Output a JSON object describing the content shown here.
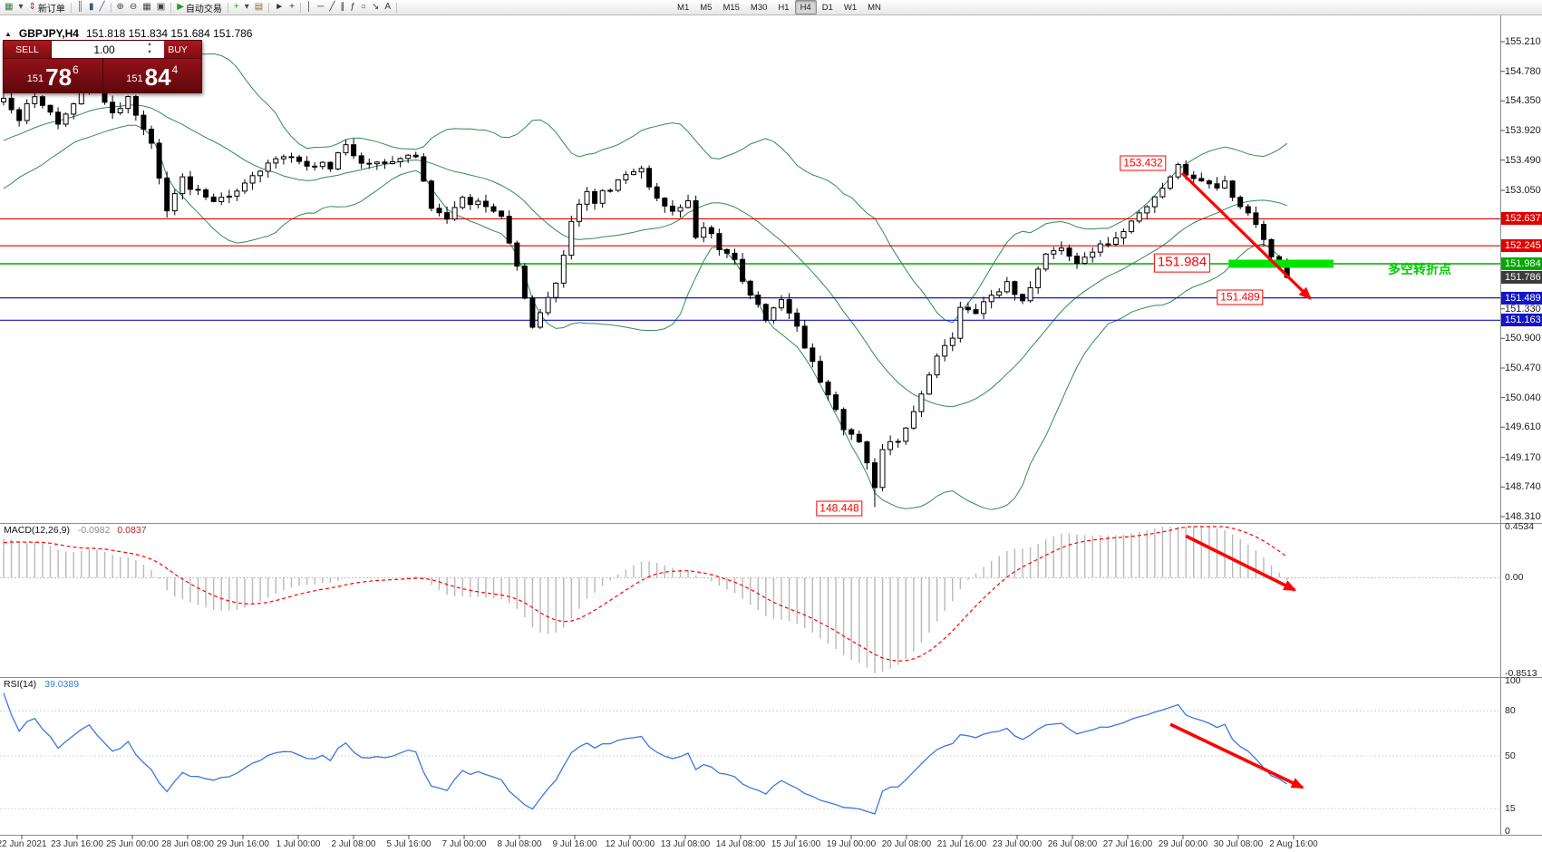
{
  "toolbar": {
    "buttons": [
      {
        "name": "new-chart",
        "glyph": "▦",
        "color": "#3a7d44"
      },
      {
        "name": "profiles",
        "glyph": "▾",
        "color": "#444"
      },
      {
        "name": "new-order",
        "glyph": "⇕",
        "color": "#c02020",
        "label": "新订单"
      },
      {
        "sep": true
      },
      {
        "name": "chart-bars",
        "glyph": "║",
        "color": "#445577"
      },
      {
        "name": "chart-candles",
        "glyph": "▮",
        "color": "#445577"
      },
      {
        "name": "chart-line",
        "glyph": "╱",
        "color": "#445577"
      },
      {
        "sep": true
      },
      {
        "name": "zoom-in",
        "glyph": "⊕",
        "color": "#444"
      },
      {
        "name": "zoom-out",
        "glyph": "⊖",
        "color": "#444"
      },
      {
        "name": "tile-windows",
        "glyph": "▦",
        "color": "#444"
      },
      {
        "name": "cascade-windows",
        "glyph": "▣",
        "color": "#444"
      },
      {
        "sep": true
      },
      {
        "name": "autotrading",
        "glyph": "▶",
        "color": "#21a121",
        "label": "自动交易"
      },
      {
        "sep": true
      },
      {
        "name": "indicators",
        "glyph": "+",
        "color": "#21a121"
      },
      {
        "name": "periods",
        "glyph": "▾",
        "color": "#444"
      },
      {
        "name": "templates",
        "glyph": "▤",
        "color": "#8a6d3b"
      },
      {
        "sep": true
      },
      {
        "name": "cursor",
        "glyph": "►",
        "color": "#333"
      },
      {
        "name": "crosshair",
        "glyph": "+",
        "color": "#333"
      },
      {
        "sep": true
      },
      {
        "name": "vertical-line",
        "glyph": "│",
        "color": "#333"
      },
      {
        "name": "horizontal-line",
        "glyph": "─",
        "color": "#333"
      },
      {
        "name": "trendline",
        "glyph": "╱",
        "color": "#333"
      },
      {
        "name": "channel",
        "glyph": "∥",
        "color": "#333"
      },
      {
        "name": "fibonacci",
        "glyph": "ƒ",
        "color": "#333"
      },
      {
        "name": "shapes",
        "glyph": "○",
        "color": "#333"
      },
      {
        "name": "arrows",
        "glyph": "↘",
        "color": "#333"
      },
      {
        "name": "text",
        "glyph": "A",
        "color": "#333"
      },
      {
        "sep": true
      }
    ],
    "timeframes": [
      "M1",
      "M5",
      "M15",
      "M30",
      "H1",
      "H4",
      "D1",
      "W1",
      "MN"
    ],
    "active_timeframe": "H4"
  },
  "symbol_info": {
    "symbol": "GBPJPY,H4",
    "ohlc": "151.818 151.834 151.684 151.786"
  },
  "trade_panel": {
    "sell_label": "SELL",
    "buy_label": "BUY",
    "volume": "1.00",
    "sell_price": {
      "prefix": "151",
      "big": "78",
      "sup": "6"
    },
    "buy_price": {
      "prefix": "151",
      "big": "84",
      "sup": "4"
    }
  },
  "chart_data": {
    "type": "candlestick",
    "symbol": "GBPJPY",
    "timeframe": "H4",
    "price_axis": {
      "min": 148.31,
      "max": 155.21,
      "ticks": [
        "155.210",
        "154.780",
        "154.350",
        "153.920",
        "153.490",
        "153.050",
        "151.330",
        "150.900",
        "150.470",
        "150.040",
        "149.610",
        "149.170",
        "148.740",
        "148.310"
      ]
    },
    "levels": [
      {
        "price": 152.637,
        "label": "152.637",
        "color": "#e00000",
        "lw": 1.1
      },
      {
        "price": 152.245,
        "label": "152.245",
        "color": "#e00000",
        "lw": 1.1
      },
      {
        "price": 151.984,
        "label": "151.984",
        "color": "#00a800",
        "lw": 1.6
      },
      {
        "price": 151.489,
        "label": "151.489",
        "color": "#1414c8",
        "lw": 1.2
      },
      {
        "price": 151.163,
        "label": "151.163",
        "color": "#1414c8",
        "lw": 1.2
      }
    ],
    "current_price": {
      "price": 151.786,
      "label": "151.786",
      "color": "#3c3c3c"
    },
    "bollinger": {
      "period": 20,
      "deviation": 2,
      "color": "#2e8b57"
    },
    "bars_count": 166,
    "last_close": 151.786,
    "key_points": {
      "swing_high": {
        "bar": 151,
        "price": 153.432
      },
      "swing_low": {
        "bar": 112,
        "price": 148.448
      }
    },
    "price_path": [
      [
        0,
        154.35
      ],
      [
        2,
        154.1
      ],
      [
        4,
        154.45
      ],
      [
        7,
        154.05
      ],
      [
        11,
        154.6
      ],
      [
        14,
        154.15
      ],
      [
        16,
        154.4
      ],
      [
        19,
        153.7
      ],
      [
        21,
        152.8
      ],
      [
        23,
        153.2
      ],
      [
        27,
        152.85
      ],
      [
        30,
        153.05
      ],
      [
        32,
        153.3
      ],
      [
        36,
        153.55
      ],
      [
        39,
        153.45
      ],
      [
        42,
        153.4
      ],
      [
        44,
        153.7
      ],
      [
        46,
        153.45
      ],
      [
        50,
        153.5
      ],
      [
        53,
        153.55
      ],
      [
        55,
        152.8
      ],
      [
        57,
        152.65
      ],
      [
        59,
        152.9
      ],
      [
        62,
        152.85
      ],
      [
        64,
        152.7
      ],
      [
        66,
        151.95
      ],
      [
        68,
        151.05
      ],
      [
        69,
        151.3
      ],
      [
        71,
        151.7
      ],
      [
        73,
        152.6
      ],
      [
        75,
        153.0
      ],
      [
        76,
        152.9
      ],
      [
        78,
        153.1
      ],
      [
        80,
        153.25
      ],
      [
        82,
        153.35
      ],
      [
        84,
        152.9
      ],
      [
        86,
        152.7
      ],
      [
        88,
        152.85
      ],
      [
        89,
        152.4
      ],
      [
        90,
        152.55
      ],
      [
        92,
        152.2
      ],
      [
        94,
        152.0
      ],
      [
        96,
        151.55
      ],
      [
        98,
        151.2
      ],
      [
        100,
        151.45
      ],
      [
        102,
        151.1
      ],
      [
        103,
        150.8
      ],
      [
        105,
        150.3
      ],
      [
        107,
        149.9
      ],
      [
        108,
        149.55
      ],
      [
        110,
        149.4
      ],
      [
        112,
        148.75
      ],
      [
        113,
        149.3
      ],
      [
        115,
        149.45
      ],
      [
        116,
        149.55
      ],
      [
        118,
        150.1
      ],
      [
        120,
        150.6
      ],
      [
        122,
        150.95
      ],
      [
        123,
        151.4
      ],
      [
        125,
        151.3
      ],
      [
        127,
        151.55
      ],
      [
        129,
        151.7
      ],
      [
        131,
        151.45
      ],
      [
        132,
        151.65
      ],
      [
        134,
        152.1
      ],
      [
        136,
        152.25
      ],
      [
        138,
        151.95
      ],
      [
        140,
        152.2
      ],
      [
        142,
        152.3
      ],
      [
        144,
        152.5
      ],
      [
        146,
        152.7
      ],
      [
        148,
        152.95
      ],
      [
        150,
        153.2
      ],
      [
        151,
        153.38
      ],
      [
        153,
        153.2
      ],
      [
        155,
        153.1
      ],
      [
        157,
        153.15
      ],
      [
        158,
        152.9
      ],
      [
        160,
        152.7
      ],
      [
        161,
        152.55
      ],
      [
        162,
        152.3
      ],
      [
        164,
        151.95
      ],
      [
        165,
        151.79
      ]
    ],
    "time_labels": [
      "22 Jun 2021",
      "23 Jun 16:00",
      "25 Jun 00:00",
      "28 Jun 08:00",
      "29 Jun 16:00",
      "1 Jul 00:00",
      "2 Jul 08:00",
      "5 Jul 16:00",
      "7 Jul 00:00",
      "8 Jul 08:00",
      "9 Jul 16:00",
      "12 Jul 00:00",
      "13 Jul 08:00",
      "14 Jul 08:00",
      "15 Jul 16:00",
      "19 Jul 00:00",
      "20 Jul 08:00",
      "21 Jul 16:00",
      "23 Jul 00:00",
      "26 Jul 08:00",
      "27 Jul 16:00",
      "29 Jul 00:00",
      "30 Jul 08:00",
      "2 Aug 16:00"
    ],
    "annotations": [
      {
        "type": "callout",
        "panel": "main",
        "text": "153.432",
        "bar": 146.5,
        "price": 153.45,
        "size": 12
      },
      {
        "type": "callout",
        "panel": "main",
        "text": "151.984",
        "bar": 151.5,
        "price": 152.0,
        "size": 15
      },
      {
        "type": "callout",
        "panel": "main",
        "text": "151.489",
        "bar": 159,
        "price": 151.5,
        "size": 12
      },
      {
        "type": "callout",
        "panel": "main",
        "text": "148.448",
        "bar": 107.5,
        "price": 148.43,
        "size": 12
      },
      {
        "type": "label",
        "panel": "main",
        "text": "多空转折点",
        "bar": 178,
        "price": 151.9,
        "color": "#00cc00",
        "size": 14
      },
      {
        "type": "hbar",
        "panel": "main",
        "bar_from": 157.5,
        "bar_to": 171,
        "price": 151.984,
        "color": "#00e400",
        "thickness": 9
      },
      {
        "type": "arrow",
        "panel": "main",
        "from_bar": 151.5,
        "from_price": 153.3,
        "to_bar": 168,
        "to_price": 151.48,
        "color": "#ff0000",
        "width": 3.2
      },
      {
        "type": "arrow",
        "panel": "macd",
        "from_bar": 152,
        "from_value": 0.37,
        "to_bar": 166,
        "to_value": -0.11,
        "color": "#ff0000",
        "width": 3.6
      },
      {
        "type": "arrow",
        "panel": "rsi",
        "from_bar": 150,
        "from_value": 71,
        "to_bar": 167,
        "to_value": 29,
        "color": "#ff0000",
        "width": 3.6
      }
    ],
    "macd": {
      "label": "MACD(12,26,9)",
      "value_main": "-0.0982",
      "value_signal": "0.0837",
      "range": [
        -0.8513,
        0.4534
      ],
      "scale": [
        {
          "label": "0.4534",
          "value": 0.4534
        },
        {
          "label": "0.00",
          "value": 0
        },
        {
          "label": "-0.8513",
          "value": -0.8513
        }
      ],
      "histogram_color": "#b8b8b8",
      "signal_color": "#ff0000"
    },
    "rsi": {
      "label": "RSI(14)",
      "value": "39.0389",
      "scale": [
        {
          "label": "100",
          "value": 100
        },
        {
          "label": "80",
          "value": 80
        },
        {
          "label": "50",
          "value": 50
        },
        {
          "label": "15",
          "value": 15
        },
        {
          "label": "0",
          "value": 0
        }
      ],
      "dotted_levels": [
        80,
        50,
        15
      ],
      "line_color": "#3c78dc"
    }
  },
  "colors": {
    "candle_up": "#ffffff",
    "candle_down": "#000000",
    "candle_border": "#000000",
    "annotation_red": "#ff0000",
    "highlight_green": "#00e400",
    "panel_red": "#7e0d12"
  }
}
